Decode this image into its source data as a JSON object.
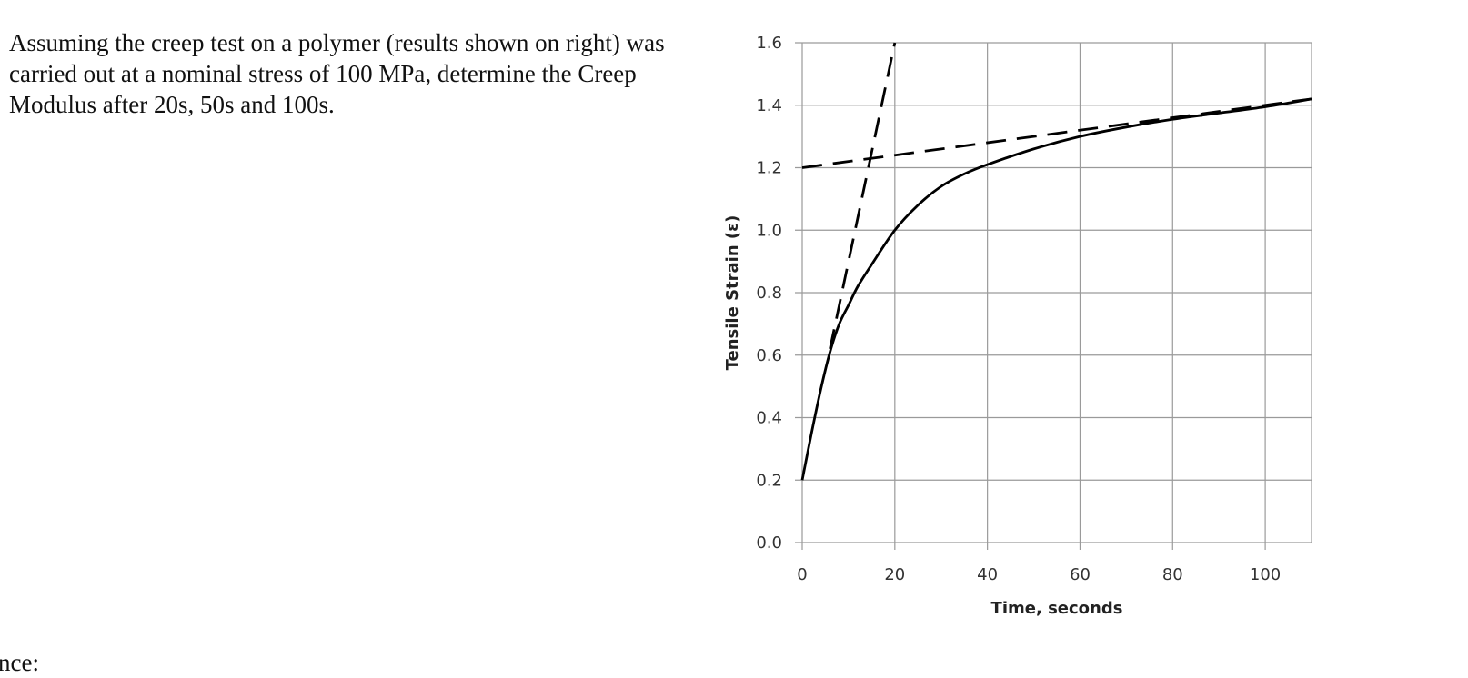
{
  "problem": {
    "text": "Assuming the creep test on a polymer (results shown on right) was carried out at a nominal stress of 100 MPa, determine the Creep Modulus after 20s, 50s and 100s.",
    "trailing_fragment": "nce:"
  },
  "chart_data": {
    "type": "line",
    "title": "",
    "xlabel": "Time, seconds",
    "ylabel": "Tensile Strain (ε)",
    "xlim": [
      0,
      110
    ],
    "ylim": [
      0.0,
      1.6
    ],
    "x_ticks": [
      "0",
      "20",
      "40",
      "60",
      "80",
      "100"
    ],
    "y_ticks": [
      "0.0",
      "0.2",
      "0.4",
      "0.6",
      "0.8",
      "1.0",
      "1.2",
      "1.4",
      "1.6"
    ],
    "grid": true,
    "legend": "none",
    "series": [
      {
        "style": "solid",
        "color": "#000000",
        "x": [
          0,
          2,
          4,
          6,
          8,
          10,
          12,
          15,
          20,
          25,
          30,
          35,
          40,
          50,
          60,
          70,
          80,
          90,
          100,
          110
        ],
        "y": [
          0.2,
          0.35,
          0.49,
          0.61,
          0.7,
          0.76,
          0.82,
          0.89,
          1.0,
          1.08,
          1.14,
          1.18,
          1.21,
          1.26,
          1.3,
          1.33,
          1.355,
          1.375,
          1.395,
          1.42
        ]
      },
      {
        "style": "dashed",
        "color": "#000000",
        "x": [
          6,
          20
        ],
        "y": [
          0.62,
          1.6
        ]
      },
      {
        "style": "dashed",
        "color": "#000000",
        "x": [
          0,
          110
        ],
        "y": [
          1.2,
          1.42
        ]
      }
    ]
  }
}
